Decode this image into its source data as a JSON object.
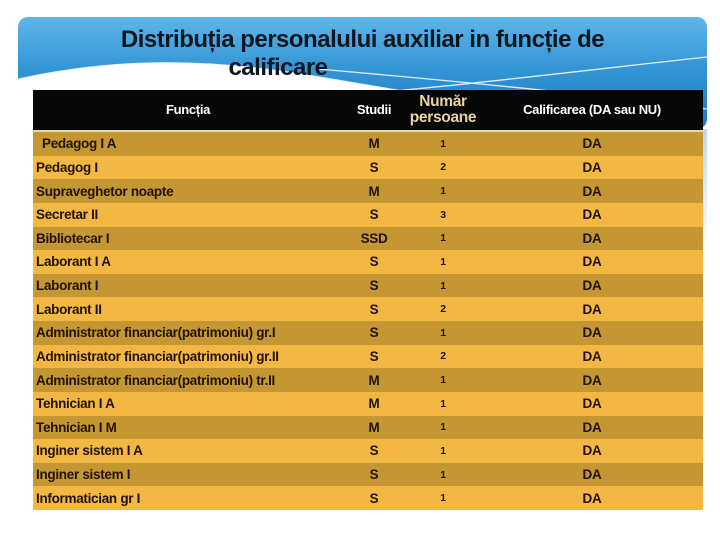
{
  "slide": {
    "title_line1": "Distribuția personalului auxiliar in funcție de",
    "title_line2": "calificare"
  },
  "table": {
    "headers": {
      "functia": "Funcția",
      "studii": "Studii",
      "numar_line1": "Număr",
      "numar_line2": "persoane",
      "calificarea": "Calificarea (DA sau NU)"
    },
    "rows": [
      {
        "functia": "Pedagog I A",
        "studii": "M",
        "numar": "1",
        "calificarea": "DA"
      },
      {
        "functia": "Pedagog I",
        "studii": "S",
        "numar": "2",
        "calificarea": "DA"
      },
      {
        "functia": "Supraveghetor noapte",
        "studii": "M",
        "numar": "1",
        "calificarea": "DA"
      },
      {
        "functia": "Secretar II",
        "studii": "S",
        "numar": "3",
        "calificarea": "DA"
      },
      {
        "functia": "Bibliotecar I",
        "studii": "SSD",
        "numar": "1",
        "calificarea": "DA"
      },
      {
        "functia": "Laborant I A",
        "studii": "S",
        "numar": "1",
        "calificarea": "DA"
      },
      {
        "functia": "Laborant I",
        "studii": "S",
        "numar": "1",
        "calificarea": "DA"
      },
      {
        "functia": "Laborant II",
        "studii": "S",
        "numar": "2",
        "calificarea": "DA"
      },
      {
        "functia": "Administrator financiar(patrimoniu) gr.I",
        "studii": "S",
        "numar": "1",
        "calificarea": "DA"
      },
      {
        "functia": "Administrator financiar(patrimoniu) gr.II",
        "studii": "S",
        "numar": "2",
        "calificarea": "DA"
      },
      {
        "functia": "Administrator financiar(patrimoniu) tr.II",
        "studii": "M",
        "numar": "1",
        "calificarea": "DA"
      },
      {
        "functia": "Tehnician I A",
        "studii": "M",
        "numar": "1",
        "calificarea": "DA"
      },
      {
        "functia": "Tehnician I M",
        "studii": "M",
        "numar": "1",
        "calificarea": "DA"
      },
      {
        "functia": "Inginer sistem I A",
        "studii": "S",
        "numar": "1",
        "calificarea": "DA"
      },
      {
        "functia": "Inginer sistem I",
        "studii": "S",
        "numar": "1",
        "calificarea": "DA"
      },
      {
        "functia": "Informatician gr I",
        "studii": "S",
        "numar": "1",
        "calificarea": "DA"
      }
    ]
  },
  "colors": {
    "row_dark_gold": "#c49733",
    "row_light_gold": "#f3b843",
    "header_black": "#070707",
    "header_cream_text": "#e9d5a1",
    "divider_cream": "#ead8a2",
    "banner_blue_top": "#5cb3e6",
    "banner_blue_bottom": "#1a78bd",
    "title_text": "#0e161f",
    "row_text": "#211204"
  }
}
